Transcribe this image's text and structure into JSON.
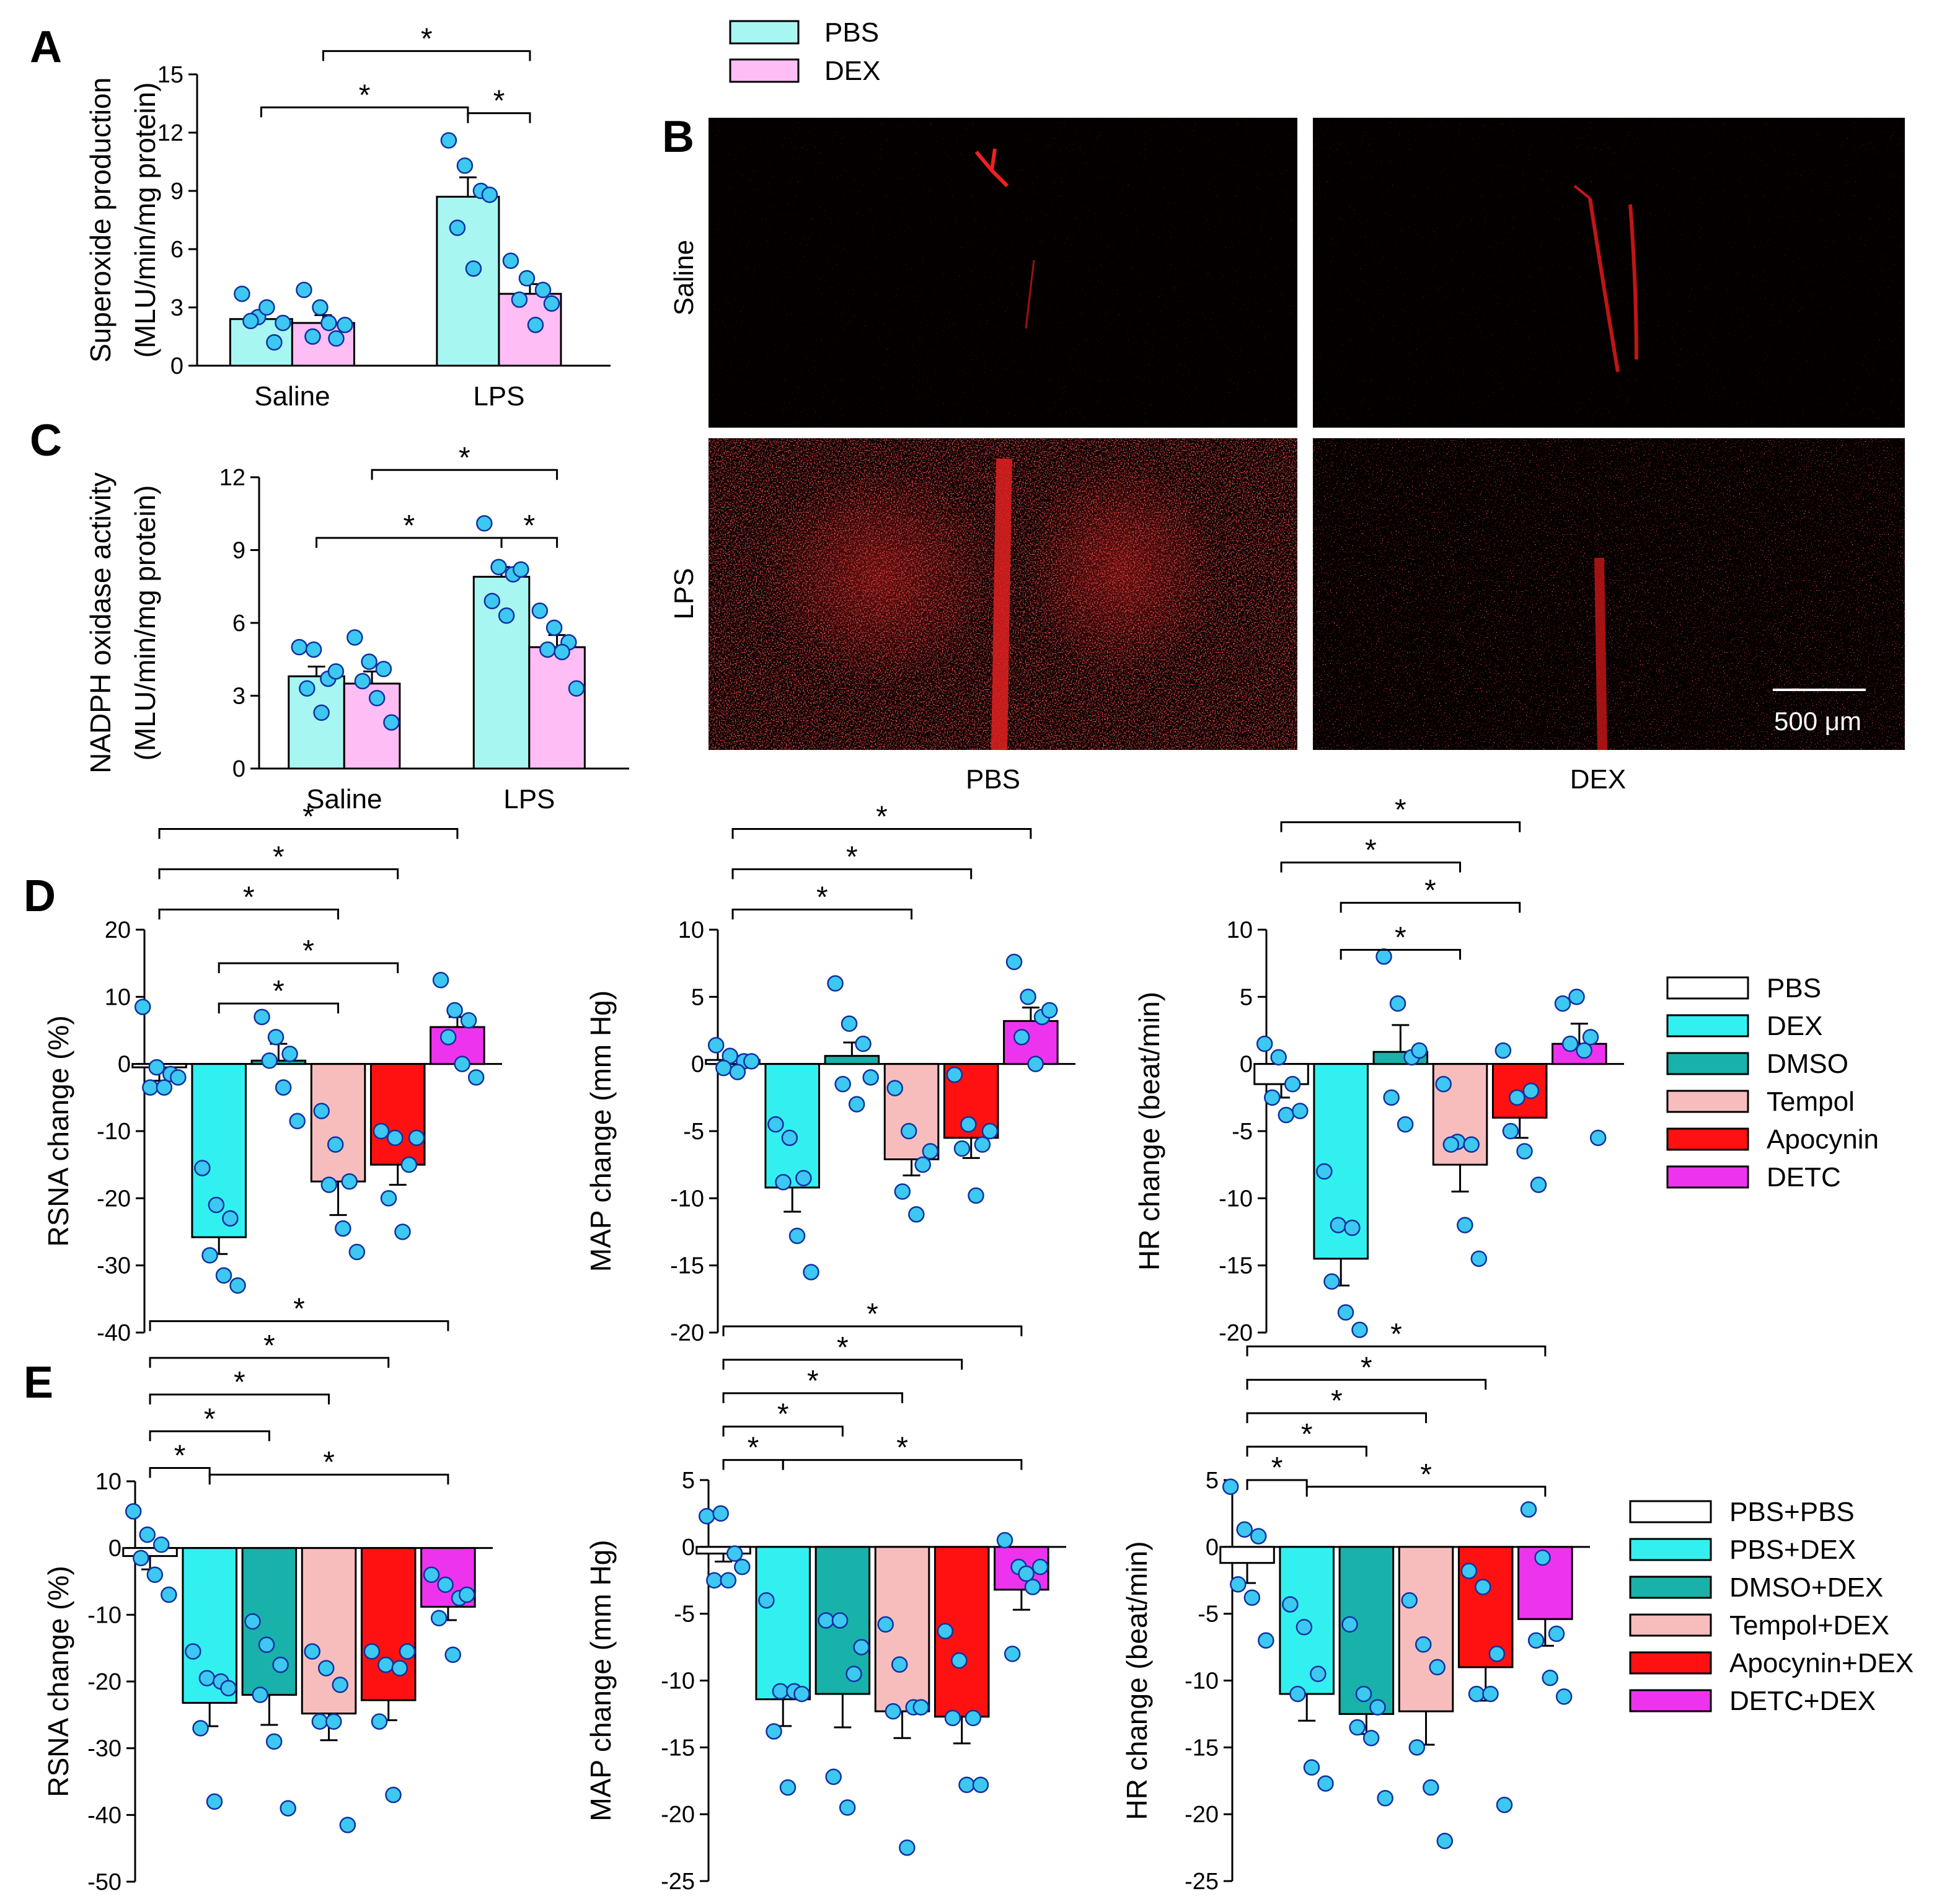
{
  "colors": {
    "PBS": "#ffffff",
    "DEX": "#33f0f0",
    "DMSO": "#18b2aa",
    "Tempol": "#f7bdbd",
    "Apocynin": "#ff1111",
    "DETC": "#ee33ee",
    "pbs_light": "#a8f6f2",
    "dex_light": "#ffbdf6",
    "dot": "#3cc8f0"
  },
  "legend_top": [
    "PBS",
    "DEX"
  ],
  "micrograph": {
    "panel": "B",
    "row_labels": [
      "Saline",
      "LPS"
    ],
    "col_labels": [
      "PBS",
      "DEX"
    ],
    "scale_bar": "500 μm"
  },
  "chart_data": [
    {
      "id": "A",
      "panel": "A",
      "type": "bar",
      "ylabel": [
        "Superoxide production",
        "(MLU/min/mg protein)"
      ],
      "ylim": [
        0,
        15
      ],
      "yticks": [
        0,
        3,
        6,
        9,
        12,
        15
      ],
      "categories": [
        "Saline",
        "LPS"
      ],
      "series": [
        {
          "name": "PBS",
          "color": "pbs_light",
          "values": [
            2.4,
            8.7
          ],
          "sem": [
            0.3,
            1.0
          ],
          "points": [
            [
              3.7,
              2.5,
              1.2,
              2.3,
              3.0,
              2.2
            ],
            [
              11.6,
              10.3,
              9.0,
              7.1,
              5.0,
              8.8
            ]
          ]
        },
        {
          "name": "DEX",
          "color": "dex_light",
          "values": [
            2.2,
            3.7
          ],
          "sem": [
            0.4,
            0.5
          ],
          "points": [
            [
              3.9,
              3.0,
              1.4,
              1.5,
              2.2,
              2.1
            ],
            [
              5.4,
              4.5,
              3.9,
              3.4,
              2.1,
              3.2
            ]
          ]
        }
      ],
      "sig": [
        {
          "from": [
            0,
            0
          ],
          "to": [
            1,
            0
          ],
          "y": 13.3,
          "label": "*"
        },
        {
          "from": [
            1,
            0
          ],
          "to": [
            1,
            1
          ],
          "y": 13.0,
          "label": "*"
        },
        {
          "from": [
            0,
            1
          ],
          "to": [
            1,
            1
          ],
          "y": 16.2,
          "label": "*"
        }
      ]
    },
    {
      "id": "C",
      "panel": "C",
      "type": "bar",
      "ylabel": [
        "NADPH oxidase activity",
        "(MLU/min/mg protein)"
      ],
      "ylim": [
        0,
        12
      ],
      "yticks": [
        0,
        3,
        6,
        9,
        12
      ],
      "categories": [
        "Saline",
        "LPS"
      ],
      "series": [
        {
          "name": "PBS",
          "color": "pbs_light",
          "values": [
            3.8,
            7.9
          ],
          "sem": [
            0.4,
            0.4
          ],
          "points": [
            [
              5.0,
              4.9,
              3.7,
              3.3,
              2.3,
              4.0
            ],
            [
              10.1,
              8.3,
              8.0,
              6.9,
              6.3,
              8.2
            ]
          ]
        },
        {
          "name": "DEX",
          "color": "dex_light",
          "values": [
            3.5,
            5.0
          ],
          "sem": [
            0.5,
            0.5
          ],
          "points": [
            [
              5.4,
              4.4,
              4.1,
              3.6,
              2.9,
              1.9
            ],
            [
              6.5,
              5.8,
              5.2,
              4.9,
              4.8,
              3.3
            ]
          ]
        }
      ],
      "sig": [
        {
          "from": [
            0,
            0
          ],
          "to": [
            1,
            0
          ],
          "y": 9.5,
          "label": "*"
        },
        {
          "from": [
            1,
            0
          ],
          "to": [
            1,
            1
          ],
          "y": 9.5,
          "label": "*"
        },
        {
          "from": [
            0,
            1
          ],
          "to": [
            1,
            1
          ],
          "y": 12.3,
          "label": "*"
        }
      ]
    },
    {
      "id": "D1",
      "panel": "D",
      "type": "bar",
      "ylabel": [
        "RSNA change (%)"
      ],
      "ylim": [
        -40,
        20
      ],
      "yticks": [
        -40,
        -30,
        -20,
        -10,
        0,
        10,
        20
      ],
      "categories": [
        "PBS",
        "DEX",
        "DMSO",
        "Tempol",
        "Apocynin",
        "DETC"
      ],
      "colors": [
        "PBS",
        "DEX",
        "DMSO",
        "Tempol",
        "Apocynin",
        "DETC"
      ],
      "values": [
        -0.5,
        -25.8,
        0.5,
        -17.5,
        -15.0,
        5.5
      ],
      "sem": [
        2.0,
        2.5,
        2.5,
        5.0,
        3.0,
        1.5
      ],
      "points": [
        [
          8.5,
          -0.5,
          -1.5,
          -3.5,
          -3.5,
          -2.0
        ],
        [
          -15.5,
          -21.0,
          -23.0,
          -28.5,
          -31.5,
          -33.0
        ],
        [
          7.0,
          4.0,
          1.5,
          0.5,
          -3.5,
          -8.5
        ],
        [
          -7.0,
          -12.0,
          -17.5,
          -18.0,
          -24.5,
          -28.0
        ],
        [
          -10.0,
          -11.0,
          -15.0,
          -20.0,
          -25.0,
          -11.0
        ],
        [
          12.5,
          8.0,
          6.5,
          4.0,
          0.0,
          -2.0
        ]
      ],
      "sig": [
        {
          "a": 0,
          "b": 3,
          "y": 23,
          "label": "*"
        },
        {
          "a": 0,
          "b": 4,
          "y": 29,
          "label": "*"
        },
        {
          "a": 0,
          "b": 5,
          "y": 35,
          "label": "*"
        },
        {
          "a": 1,
          "b": 3,
          "y": 9,
          "label": "*"
        },
        {
          "a": 1,
          "b": 4,
          "y": 15,
          "label": "*"
        }
      ]
    },
    {
      "id": "D2",
      "panel": "",
      "type": "bar",
      "ylabel": [
        "MAP change (mm Hg)"
      ],
      "ylim": [
        -20,
        10
      ],
      "yticks": [
        -20,
        -15,
        -10,
        -5,
        0,
        5,
        10
      ],
      "categories": [
        "PBS",
        "DEX",
        "DMSO",
        "Tempol",
        "Apocynin",
        "DETC"
      ],
      "colors": [
        "PBS",
        "DEX",
        "DMSO",
        "Tempol",
        "Apocynin",
        "DETC"
      ],
      "values": [
        0.3,
        -9.2,
        0.6,
        -7.1,
        -5.5,
        3.2
      ],
      "sem": [
        0.3,
        1.8,
        1.0,
        1.2,
        1.5,
        1.0
      ],
      "points": [
        [
          1.4,
          0.6,
          0.2,
          -0.3,
          -0.6,
          0.2
        ],
        [
          -4.5,
          -5.5,
          -8.5,
          -8.8,
          -12.8,
          -15.5
        ],
        [
          6.0,
          3.0,
          1.5,
          -1.5,
          -3.0,
          -1.0
        ],
        [
          -1.8,
          -5.0,
          -7.5,
          -9.5,
          -11.2,
          -6.5
        ],
        [
          -0.8,
          -4.5,
          -6.0,
          -6.3,
          -9.8,
          -5.0
        ],
        [
          7.6,
          5.0,
          3.5,
          2.0,
          0.0,
          4.0
        ]
      ],
      "sig": [
        {
          "a": 0,
          "b": 3,
          "y": 11.5,
          "label": "*"
        },
        {
          "a": 0,
          "b": 4,
          "y": 14.5,
          "label": "*"
        },
        {
          "a": 0,
          "b": 5,
          "y": 17.5,
          "label": "*"
        }
      ]
    },
    {
      "id": "D3",
      "panel": "",
      "type": "bar",
      "ylabel": [
        "HR change (beat/min)"
      ],
      "ylim": [
        -20,
        10
      ],
      "yticks": [
        -20,
        -15,
        -10,
        -5,
        0,
        5,
        10
      ],
      "categories": [
        "PBS",
        "DEX",
        "DMSO",
        "Tempol",
        "Apocynin",
        "DETC"
      ],
      "colors": [
        "PBS",
        "DEX",
        "DMSO",
        "Tempol",
        "Apocynin",
        "DETC"
      ],
      "values": [
        -1.5,
        -14.5,
        0.9,
        -7.5,
        -4.0,
        1.5
      ],
      "sem": [
        1.0,
        2.0,
        2.0,
        2.0,
        1.5,
        1.5
      ],
      "points": [
        [
          1.5,
          0.5,
          -1.5,
          -2.5,
          -3.8,
          -3.5
        ],
        [
          -8.0,
          -12.0,
          -12.2,
          -16.2,
          -18.5,
          -19.8
        ],
        [
          8.0,
          4.5,
          0.5,
          -2.5,
          -4.5,
          1.0
        ],
        [
          -1.5,
          -5.8,
          -6.0,
          -6.0,
          -12.0,
          -14.5
        ],
        [
          1.0,
          -2.5,
          -2.0,
          -5.0,
          -6.5,
          -9.0
        ],
        [
          4.5,
          5.0,
          2.0,
          1.5,
          1.0,
          -5.5
        ]
      ],
      "sig": [
        {
          "a": 1,
          "b": 3,
          "y": 8.5,
          "label": "*"
        },
        {
          "a": 1,
          "b": 4,
          "y": 12,
          "label": "*"
        },
        {
          "a": 0,
          "b": 3,
          "y": 15,
          "label": "*"
        },
        {
          "a": 0,
          "b": 4,
          "y": 18,
          "label": "*"
        }
      ]
    },
    {
      "id": "E1",
      "panel": "E",
      "type": "bar",
      "ylabel": [
        "RSNA change (%)"
      ],
      "ylim": [
        -50,
        10
      ],
      "yticks": [
        -50,
        -40,
        -30,
        -20,
        -10,
        0,
        10
      ],
      "categories": [
        "PBS+PBS",
        "PBS+DEX",
        "DMSO+DEX",
        "Tempol+DEX",
        "Apocynin+DEX",
        "DETC+DEX"
      ],
      "colors": [
        "PBS",
        "DEX",
        "DMSO",
        "Tempol",
        "Apocynin",
        "DETC"
      ],
      "values": [
        -1.2,
        -23.2,
        -22.0,
        -24.8,
        -22.8,
        -8.8
      ],
      "sem": [
        2.0,
        3.5,
        4.5,
        4.0,
        3.0,
        2.0
      ],
      "points": [
        [
          5.5,
          2.0,
          0.5,
          -1.5,
          -4.0,
          -7.0
        ],
        [
          -15.5,
          -19.5,
          -20.0,
          -27.0,
          -38.0,
          -21.0
        ],
        [
          -11.0,
          -14.5,
          -17.5,
          -22.0,
          -29.0,
          -39.0
        ],
        [
          -15.5,
          -18.0,
          -20.5,
          -26.0,
          -26.0,
          -41.5
        ],
        [
          -15.5,
          -17.5,
          -18.0,
          -26.0,
          -37.0,
          -15.5
        ],
        [
          -4.0,
          -5.5,
          -7.5,
          -10.5,
          -16.0,
          -7.0
        ]
      ],
      "sig": [
        {
          "a": 0,
          "b": 1,
          "y": 12,
          "label": "*"
        },
        {
          "a": 0,
          "b": 2,
          "y": 17.5,
          "label": "*"
        },
        {
          "a": 0,
          "b": 3,
          "y": 23,
          "label": "*"
        },
        {
          "a": 0,
          "b": 4,
          "y": 28.5,
          "label": "*"
        },
        {
          "a": 0,
          "b": 5,
          "y": 34,
          "label": "*"
        },
        {
          "a": 1,
          "b": 5,
          "y": 11,
          "label": "*"
        }
      ]
    },
    {
      "id": "E2",
      "panel": "",
      "type": "bar",
      "ylabel": [
        "MAP change (mm Hg)"
      ],
      "ylim": [
        -25,
        5
      ],
      "yticks": [
        -25,
        -20,
        -15,
        -10,
        -5,
        0,
        5
      ],
      "categories": [
        "PBS+PBS",
        "PBS+DEX",
        "DMSO+DEX",
        "Tempol+DEX",
        "Apocynin+DEX",
        "DETC+DEX"
      ],
      "colors": [
        "PBS",
        "DEX",
        "DMSO",
        "Tempol",
        "Apocynin",
        "DETC"
      ],
      "values": [
        -0.5,
        -11.4,
        -11.0,
        -12.3,
        -12.7,
        -3.2
      ],
      "sem": [
        0.6,
        2.0,
        2.5,
        2.0,
        2.0,
        1.5
      ],
      "points": [
        [
          2.3,
          2.5,
          -0.5,
          -2.5,
          -2.5,
          -1.5
        ],
        [
          -4.0,
          -10.8,
          -10.8,
          -13.8,
          -18.0,
          -11.0
        ],
        [
          -5.5,
          -5.5,
          -9.5,
          -17.2,
          -19.5,
          -7.5
        ],
        [
          -5.8,
          -8.8,
          -12.0,
          -12.3,
          -22.5,
          -12.0
        ],
        [
          -6.3,
          -8.5,
          -12.8,
          -12.8,
          -17.8,
          -17.8
        ],
        [
          0.5,
          -1.5,
          -3.0,
          -8.0,
          -2.0,
          -1.5
        ]
      ],
      "sig": [
        {
          "a": 0,
          "b": 1,
          "y": 6.5,
          "label": "*"
        },
        {
          "a": 0,
          "b": 2,
          "y": 9,
          "label": "*"
        },
        {
          "a": 0,
          "b": 3,
          "y": 11.5,
          "label": "*"
        },
        {
          "a": 0,
          "b": 4,
          "y": 14,
          "label": "*"
        },
        {
          "a": 0,
          "b": 5,
          "y": 16.5,
          "label": "*"
        },
        {
          "a": 1,
          "b": 5,
          "y": 6.5,
          "label": "*"
        }
      ]
    },
    {
      "id": "E3",
      "panel": "",
      "type": "bar",
      "ylabel": [
        "HR change (beat/min)"
      ],
      "ylim": [
        -25,
        5
      ],
      "yticks": [
        -25,
        -20,
        -15,
        -10,
        -5,
        0,
        5
      ],
      "categories": [
        "PBS+PBS",
        "PBS+DEX",
        "DMSO+DEX",
        "Tempol+DEX",
        "Apocynin+DEX",
        "DETC+DEX"
      ],
      "colors": [
        "PBS",
        "DEX",
        "DMSO",
        "Tempol",
        "Apocynin",
        "DETC"
      ],
      "values": [
        -1.2,
        -11.0,
        -12.5,
        -12.3,
        -9.0,
        -5.4
      ],
      "sem": [
        1.5,
        2.0,
        1.5,
        2.5,
        2.5,
        2.0
      ],
      "points": [
        [
          4.5,
          1.3,
          0.8,
          -2.8,
          -3.8,
          -7.0
        ],
        [
          -4.3,
          -6.0,
          -9.5,
          -11.0,
          -16.5,
          -17.7
        ],
        [
          -5.8,
          -11.0,
          -12.0,
          -13.5,
          -14.3,
          -18.8
        ],
        [
          -4.0,
          -7.3,
          -9.0,
          -15.0,
          -18.0,
          -22.0
        ],
        [
          -1.8,
          -3.0,
          -8.0,
          -11.0,
          -11.0,
          -19.3
        ],
        [
          2.8,
          -0.8,
          -6.5,
          -7.0,
          -9.8,
          -11.2
        ]
      ],
      "sig": [
        {
          "a": 0,
          "b": 1,
          "y": 5,
          "label": "*"
        },
        {
          "a": 0,
          "b": 2,
          "y": 7.5,
          "label": "*"
        },
        {
          "a": 0,
          "b": 3,
          "y": 10,
          "label": "*"
        },
        {
          "a": 0,
          "b": 4,
          "y": 12.5,
          "label": "*"
        },
        {
          "a": 0,
          "b": 5,
          "y": 15,
          "label": "*"
        },
        {
          "a": 1,
          "b": 5,
          "y": 4.5,
          "label": "*"
        }
      ]
    }
  ],
  "legend_D": [
    "PBS",
    "DEX",
    "DMSO",
    "Tempol",
    "Apocynin",
    "DETC"
  ],
  "legend_E": [
    "PBS+PBS",
    "PBS+DEX",
    "DMSO+DEX",
    "Tempol+DEX",
    "Apocynin+DEX",
    "DETC+DEX"
  ]
}
